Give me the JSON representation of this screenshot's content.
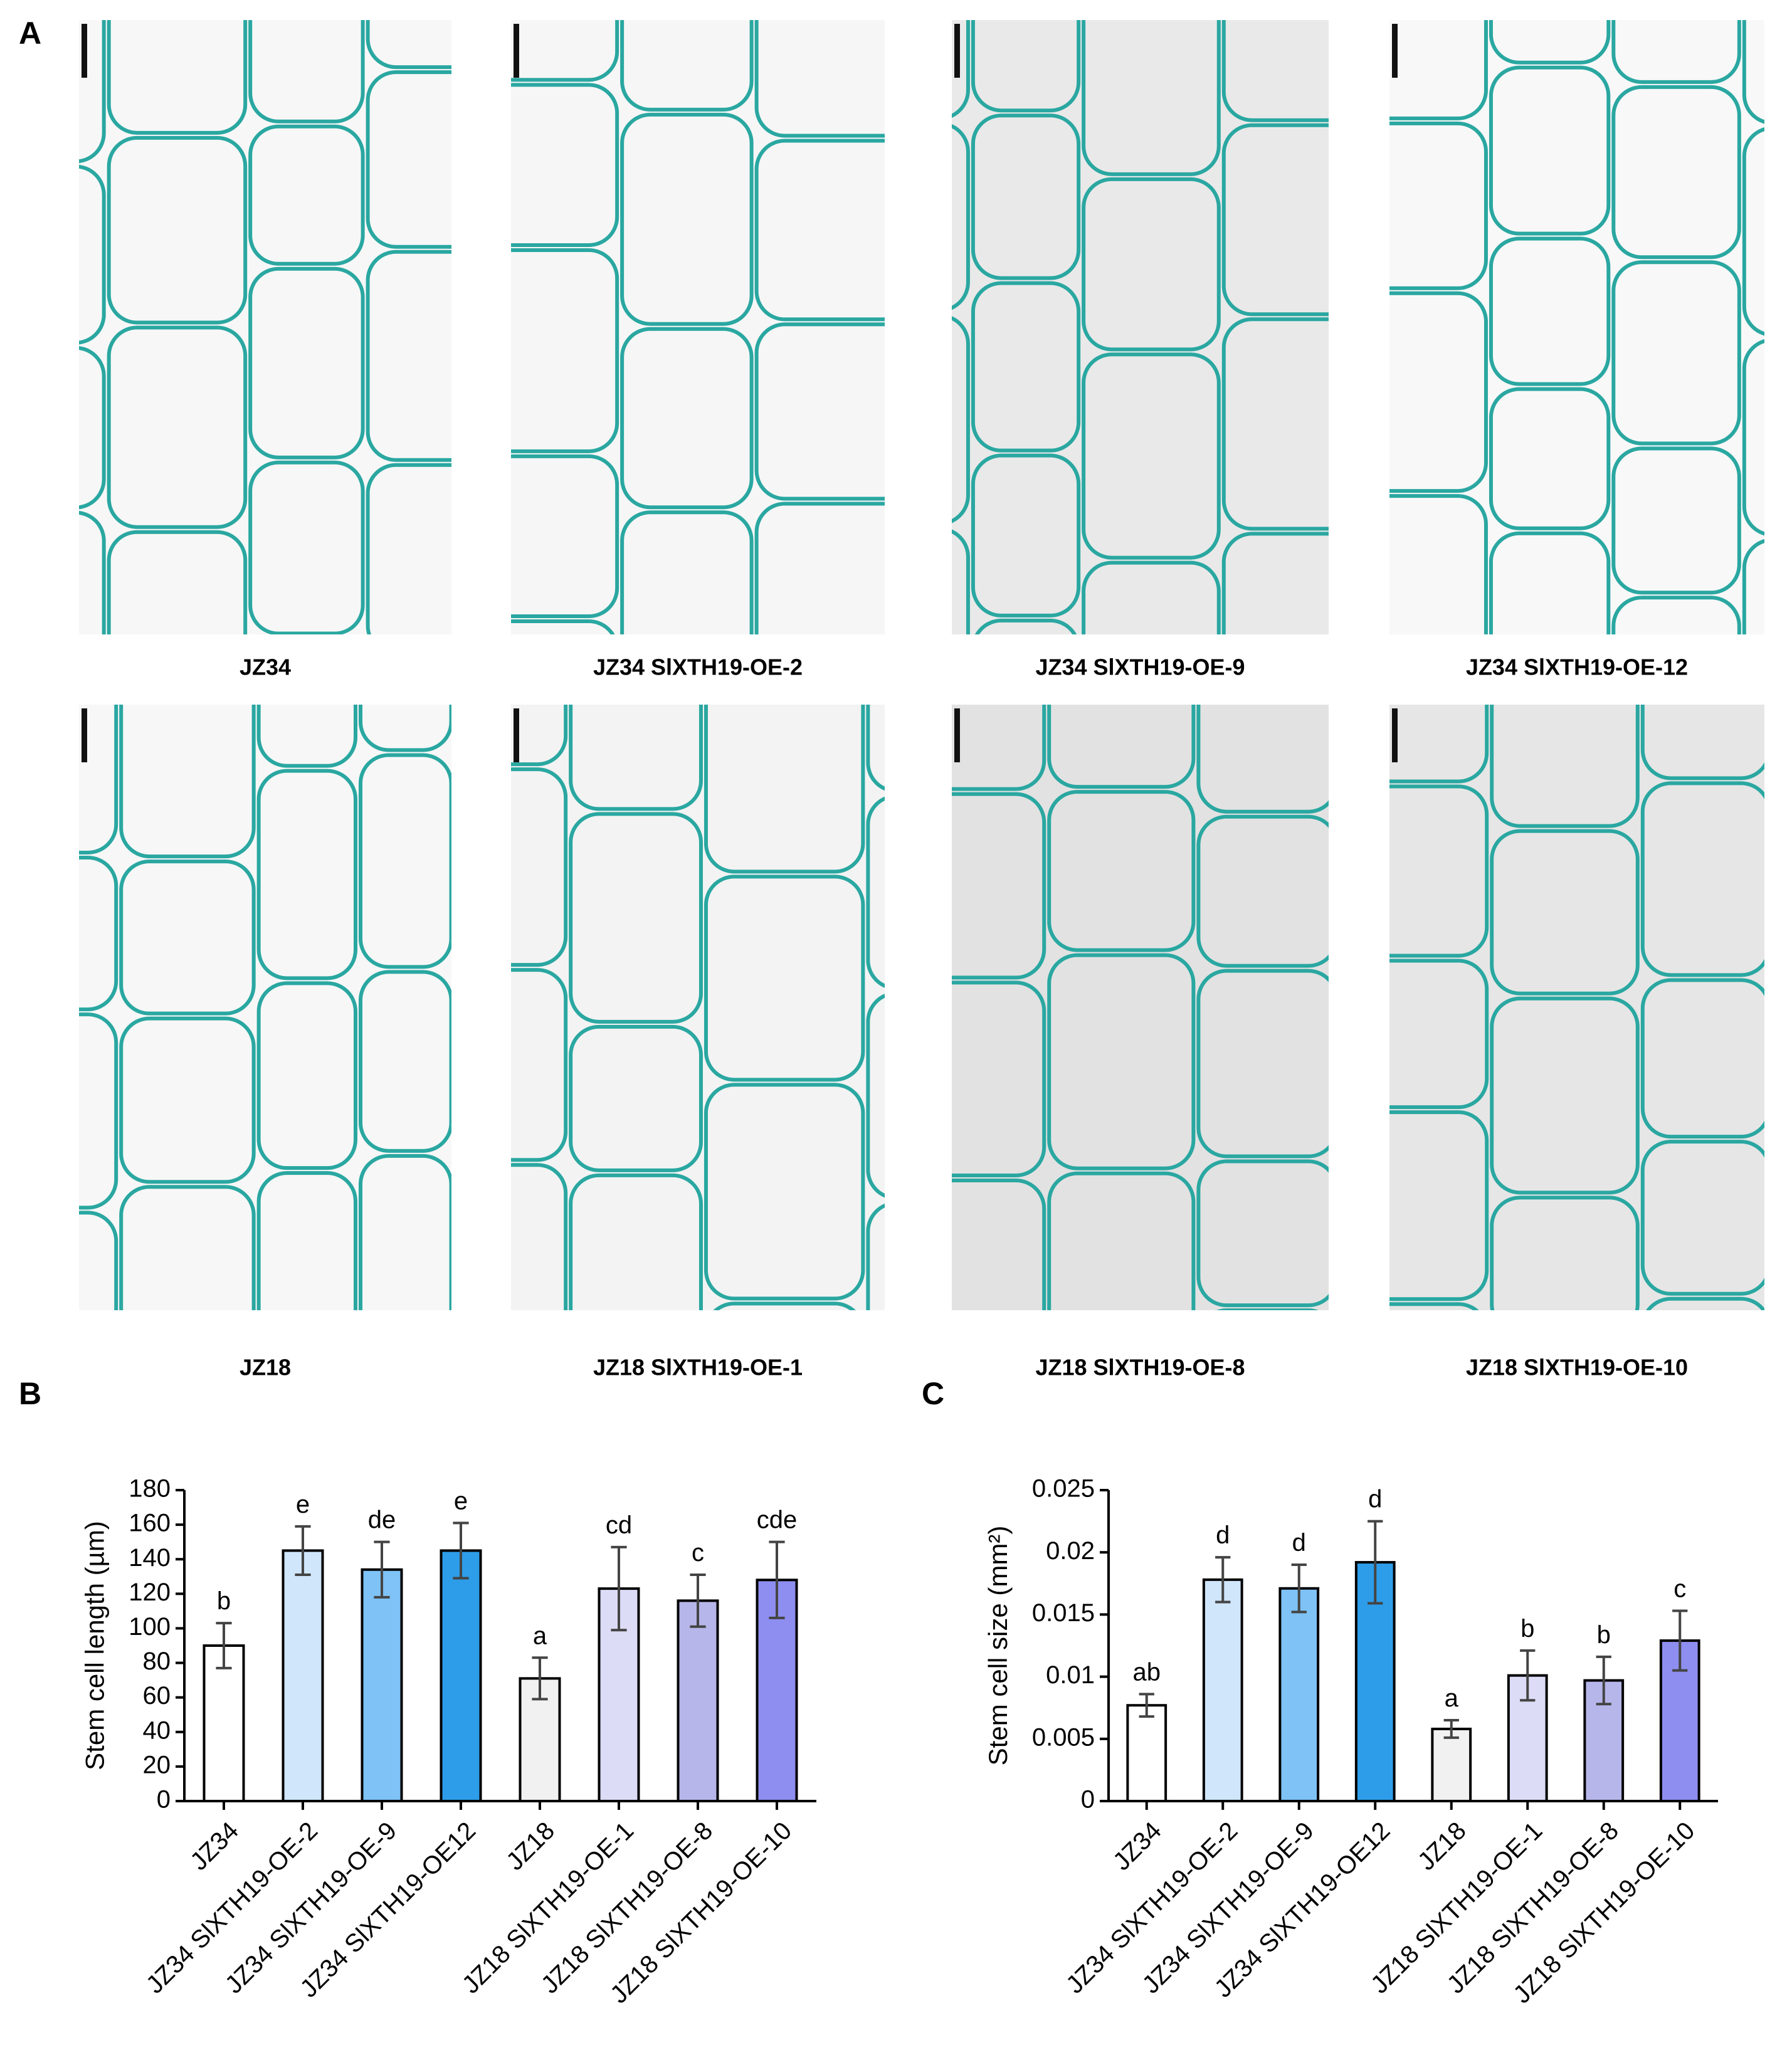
{
  "panel_labels": [
    "A",
    "B",
    "C"
  ],
  "micrographs": [
    {
      "caption": "JZ34"
    },
    {
      "caption": "JZ34 SlXTH19-OE-2"
    },
    {
      "caption": "JZ34 SlXTH19-OE-9"
    },
    {
      "caption": "JZ34 SlXTH19-OE-12"
    },
    {
      "caption": "JZ18"
    },
    {
      "caption": "JZ18 SlXTH19-OE-1"
    },
    {
      "caption": "JZ18 SlXTH19-OE-8"
    },
    {
      "caption": "JZ18 SlXTH19-OE-10"
    }
  ],
  "chart_data": [
    {
      "type": "bar",
      "y_label": "Stem cell length (µm)",
      "categories": [
        "JZ34",
        "JZ34 SlXTH19-OE-2",
        "JZ34 SlXTH19-OE-9",
        "JZ34 SlXTH19-OE12",
        "JZ18",
        "JZ18 SlXTH19-OE-1",
        "JZ18 SlXTH19-OE-8",
        "JZ18 SlXTH19-OE-10"
      ],
      "values": [
        90,
        145,
        134,
        145,
        71,
        123,
        116,
        128
      ],
      "errors": [
        13,
        14,
        16,
        16,
        12,
        24,
        15,
        22
      ],
      "letters": [
        "b",
        "e",
        "de",
        "e",
        "a",
        "cd",
        "c",
        "cde"
      ],
      "colors": [
        "#ffffff",
        "#cfe6fb",
        "#7ec2f6",
        "#2d9de9",
        "#f1f1f1",
        "#dcdcf6",
        "#b6b6ea",
        "#8e8ef0"
      ],
      "ylim": [
        0,
        180
      ],
      "yticks": [
        0,
        20,
        40,
        60,
        80,
        100,
        120,
        140,
        160,
        180
      ]
    },
    {
      "type": "bar",
      "y_label": "Stem cell size (mm²)",
      "categories": [
        "JZ34",
        "JZ34 SlXTH19-OE-2",
        "JZ34 SlXTH19-OE-9",
        "JZ34 SlXTH19-OE12",
        "JZ18",
        "JZ18 SlXTH19-OE-1",
        "JZ18 SlXTH19-OE-8",
        "JZ18 SlXTH19-OE-10"
      ],
      "values": [
        0.0077,
        0.0178,
        0.0171,
        0.0192,
        0.0058,
        0.0101,
        0.0097,
        0.0129
      ],
      "errors": [
        0.0009,
        0.0018,
        0.0019,
        0.0033,
        0.0007,
        0.002,
        0.0019,
        0.0024
      ],
      "letters": [
        "ab",
        "d",
        "d",
        "d",
        "a",
        "b",
        "b",
        "c"
      ],
      "colors": [
        "#ffffff",
        "#cfe6fb",
        "#7ec2f6",
        "#2d9de9",
        "#f1f1f1",
        "#dcdcf6",
        "#b6b6ea",
        "#8e8ef0"
      ],
      "ylim": [
        0,
        0.025
      ],
      "yticks": [
        0,
        0.005,
        0.01,
        0.015,
        0.02,
        0.025
      ]
    }
  ]
}
